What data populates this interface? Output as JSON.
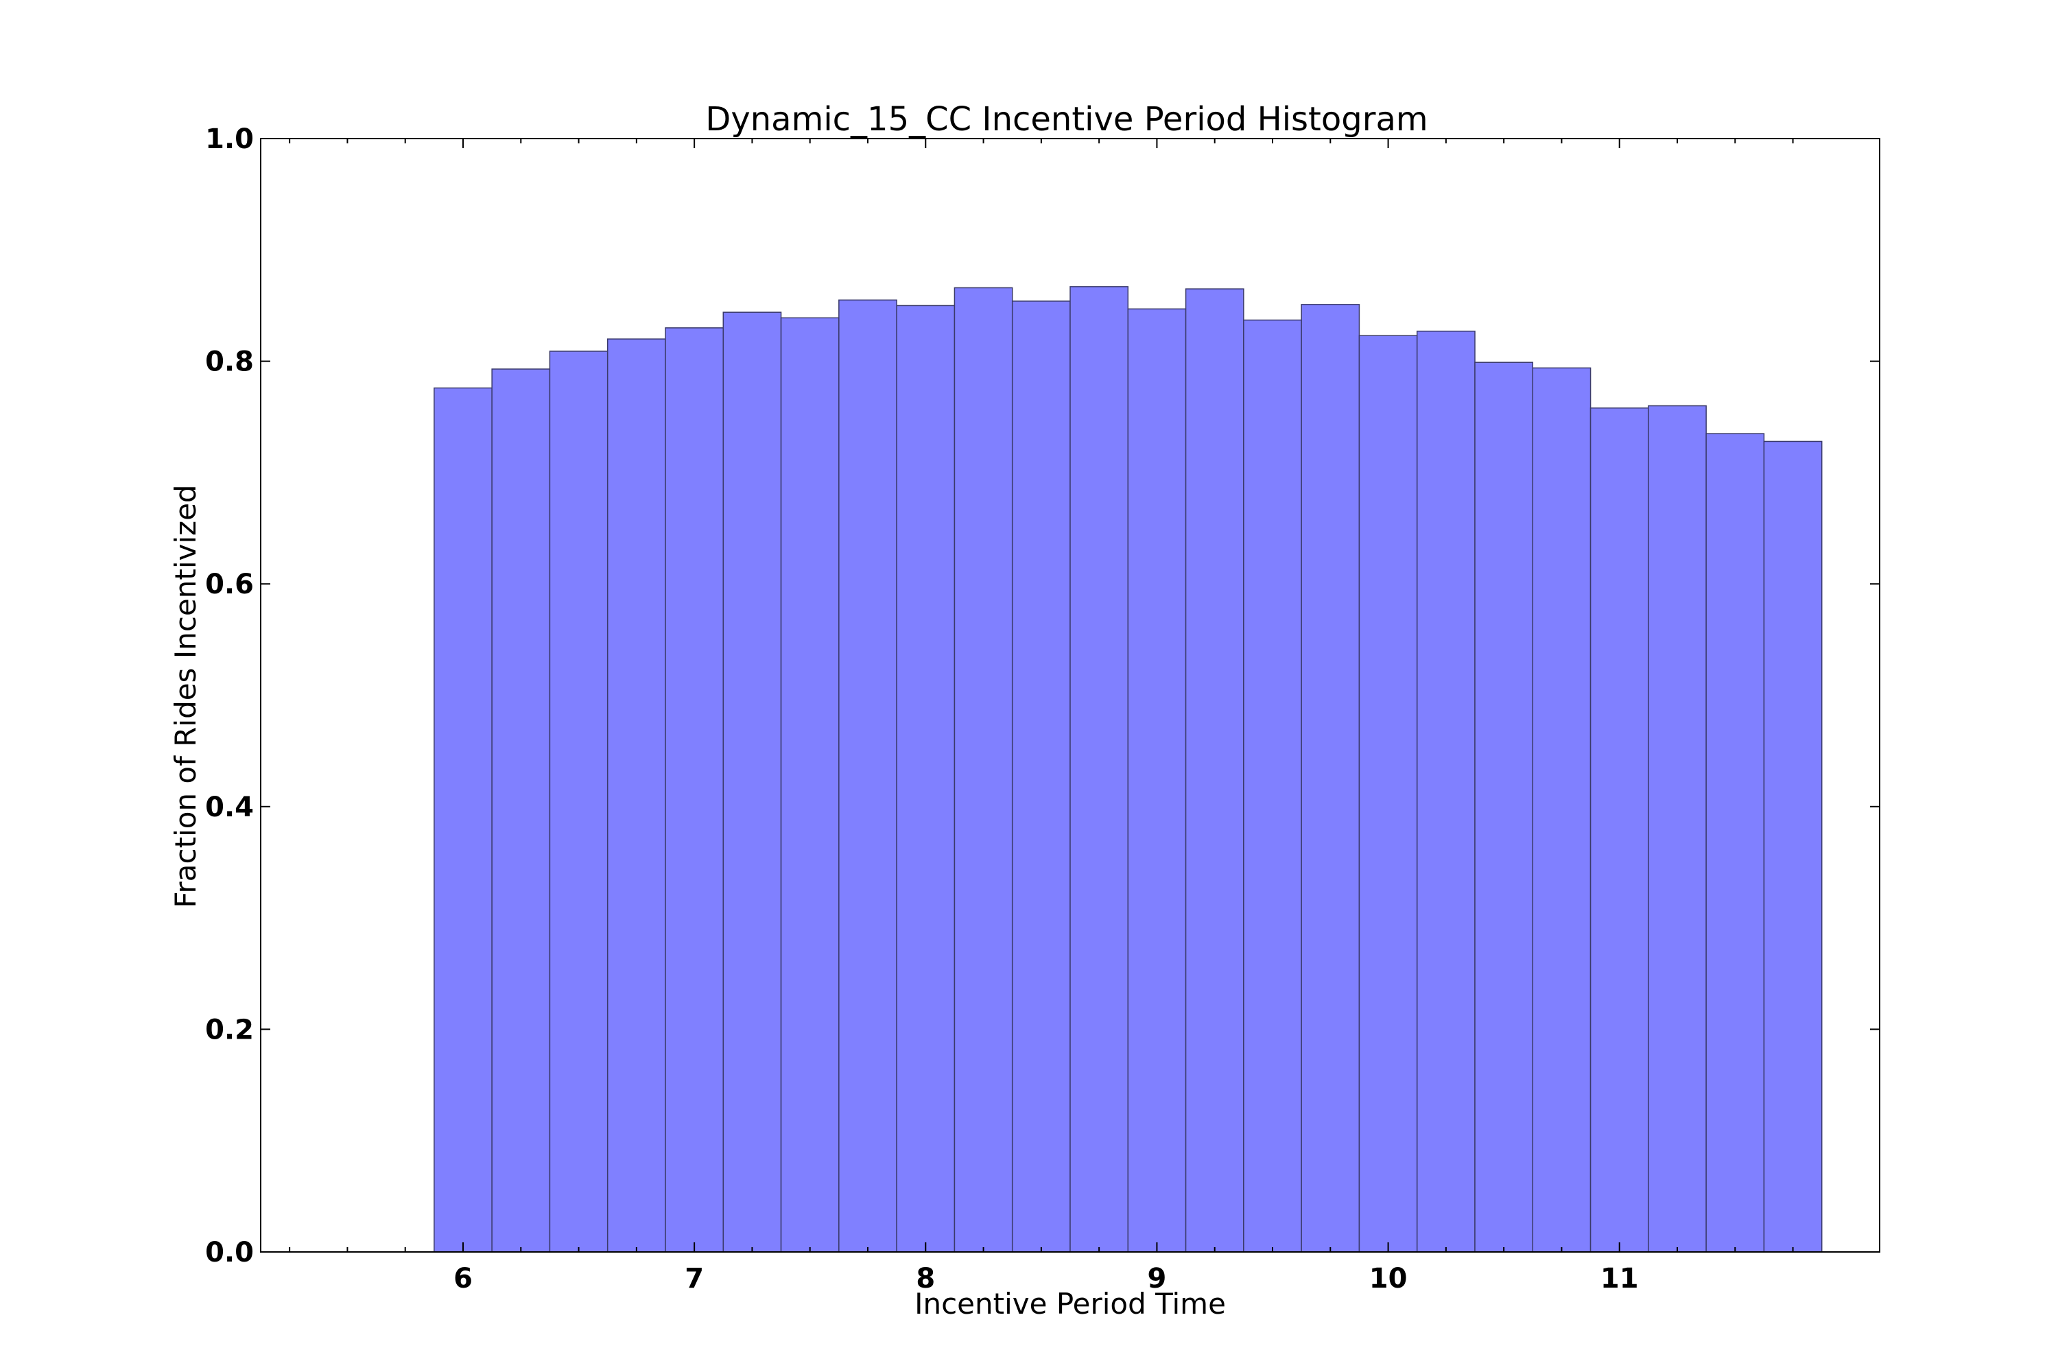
{
  "chart_data": {
    "type": "bar",
    "title": "Dynamic_15_CC Incentive Period Histogram",
    "xlabel": "Incentive Period Time",
    "ylabel": "Fraction of Rides Incentivized",
    "xlim": [
      5.125,
      12.125
    ],
    "ylim": [
      0.0,
      1.0
    ],
    "bin_width": 0.25,
    "bin_edges": [
      5.875,
      6.125,
      6.375,
      6.625,
      6.875,
      7.125,
      7.375,
      7.625,
      7.875,
      8.125,
      8.375,
      8.625,
      8.875,
      9.125,
      9.375,
      9.625,
      9.875,
      10.125,
      10.375,
      10.625,
      10.875,
      11.125,
      11.375,
      11.625,
      11.875
    ],
    "values": [
      0.776,
      0.793,
      0.809,
      0.82,
      0.83,
      0.844,
      0.839,
      0.855,
      0.85,
      0.866,
      0.854,
      0.867,
      0.847,
      0.865,
      0.837,
      0.851,
      0.823,
      0.827,
      0.799,
      0.794,
      0.758,
      0.76,
      0.735,
      0.728
    ],
    "x_ticks": [
      "6",
      "7",
      "8",
      "9",
      "10",
      "11"
    ],
    "x_tick_values": [
      6,
      7,
      8,
      9,
      10,
      11
    ],
    "y_ticks": [
      "0.0",
      "0.2",
      "0.4",
      "0.6",
      "0.8",
      "1.0"
    ],
    "y_tick_values": [
      0.0,
      0.2,
      0.4,
      0.6,
      0.8,
      1.0
    ],
    "grid": false,
    "legend": "none",
    "colors": {
      "bar_fill": "#8080ff",
      "bar_edge": "#3a3a6a",
      "axes": "#000000"
    }
  }
}
